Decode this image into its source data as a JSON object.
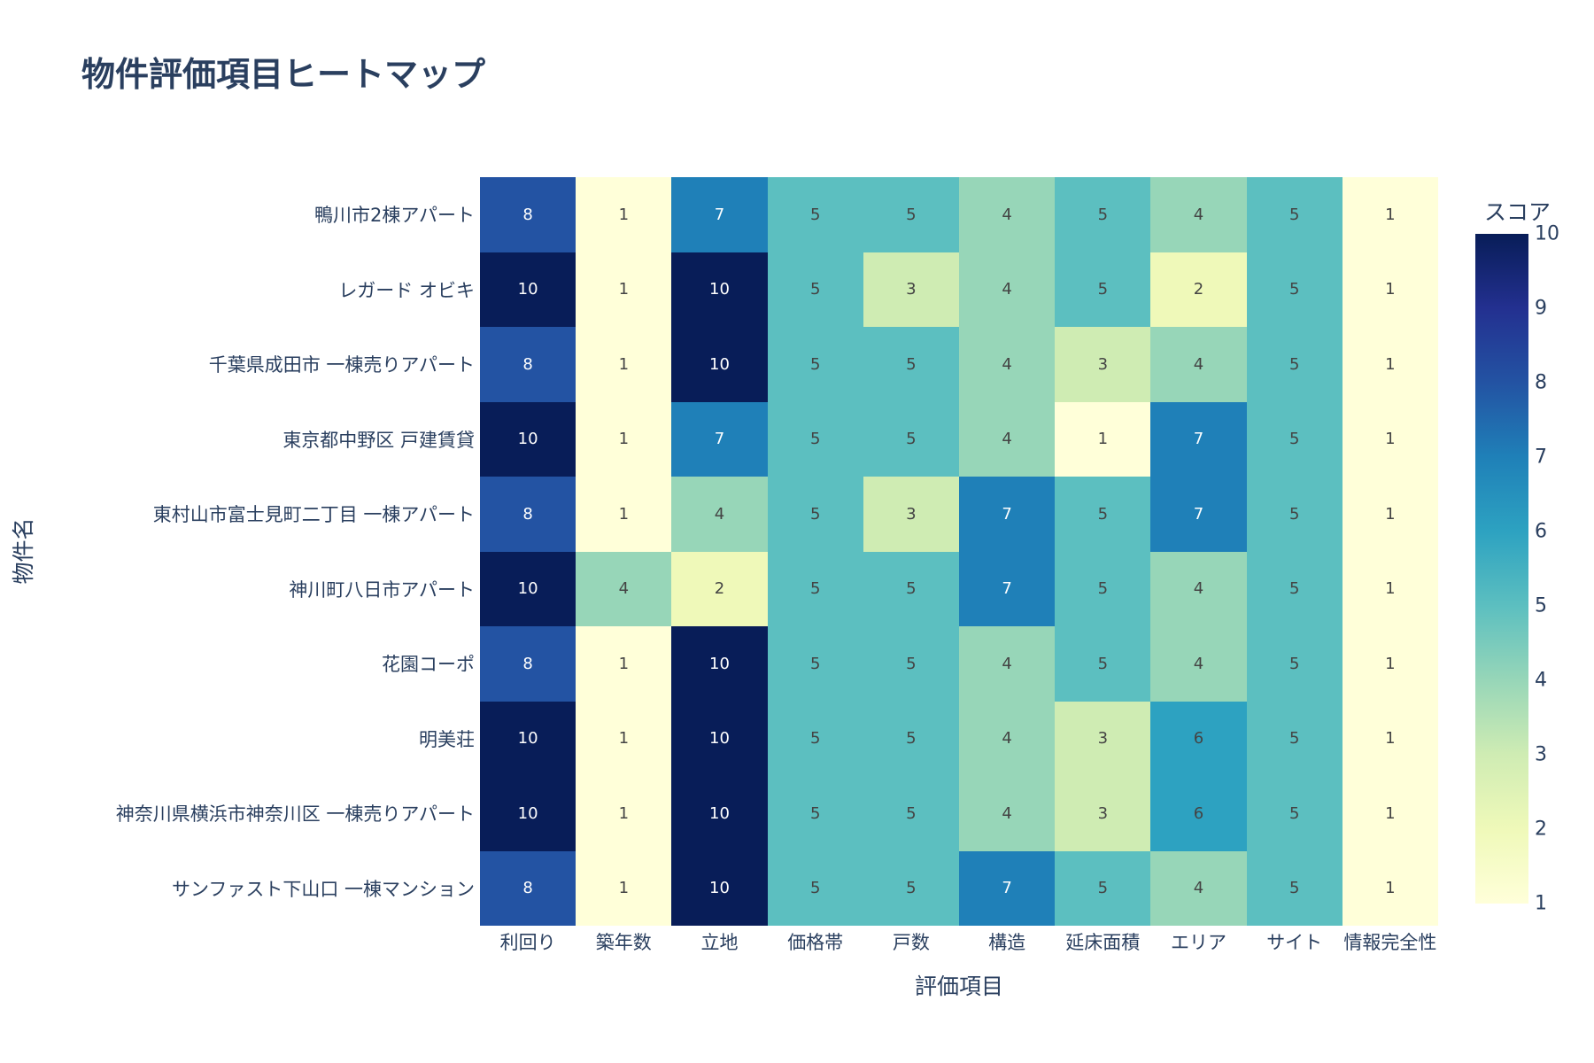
{
  "title": "物件評価項目ヒートマップ",
  "chart_data": {
    "type": "heatmap",
    "title": "物件評価項目ヒートマップ",
    "xlabel": "評価項目",
    "ylabel": "物件名",
    "colorbar_title": "スコア",
    "colorscale": "YlGnBu",
    "zmin": 1,
    "zmax": 10,
    "colorbar_ticks": [
      1,
      2,
      3,
      4,
      5,
      6,
      7,
      8,
      9,
      10
    ],
    "x": [
      "利回り",
      "築年数",
      "立地",
      "価格帯",
      "戸数",
      "構造",
      "延床面積",
      "エリア",
      "サイト",
      "情報完全性"
    ],
    "y": [
      "鴨川市2棟アパート",
      "レガード オビキ",
      "千葉県成田市 一棟売りアパート",
      "東京都中野区 戸建賃貸",
      "東村山市富士見町二丁目 一棟アパート",
      "神川町八日市アパート",
      "花園コーポ",
      "明美荘",
      "神奈川県横浜市神奈川区 一棟売りアパート",
      "サンファスト下山口 一棟マンション"
    ],
    "z": [
      [
        8,
        1,
        7,
        5,
        5,
        4,
        5,
        4,
        5,
        1
      ],
      [
        10,
        1,
        10,
        5,
        3,
        4,
        5,
        2,
        5,
        1
      ],
      [
        8,
        1,
        10,
        5,
        5,
        4,
        3,
        4,
        5,
        1
      ],
      [
        10,
        1,
        7,
        5,
        5,
        4,
        1,
        7,
        5,
        1
      ],
      [
        8,
        1,
        4,
        5,
        3,
        7,
        5,
        7,
        5,
        1
      ],
      [
        10,
        4,
        2,
        5,
        5,
        7,
        5,
        4,
        5,
        1
      ],
      [
        8,
        1,
        10,
        5,
        5,
        4,
        5,
        4,
        5,
        1
      ],
      [
        10,
        1,
        10,
        5,
        5,
        4,
        3,
        6,
        5,
        1
      ],
      [
        10,
        1,
        10,
        5,
        5,
        4,
        3,
        6,
        5,
        1
      ],
      [
        8,
        1,
        10,
        5,
        5,
        7,
        5,
        4,
        5,
        1
      ]
    ]
  },
  "colors": {
    "1": "#ffffd9",
    "2": "#eff9b9",
    "3": "#cfecb3",
    "4": "#97d6b8",
    "5": "#5cbfc0",
    "6": "#2da2c1",
    "7": "#1f80b8",
    "8": "#2353a3",
    "9": "#233090",
    "10": "#081d58",
    "text_dark": "#444444",
    "text_light": "#ffffff",
    "axis_text": "#2a3f5f"
  }
}
